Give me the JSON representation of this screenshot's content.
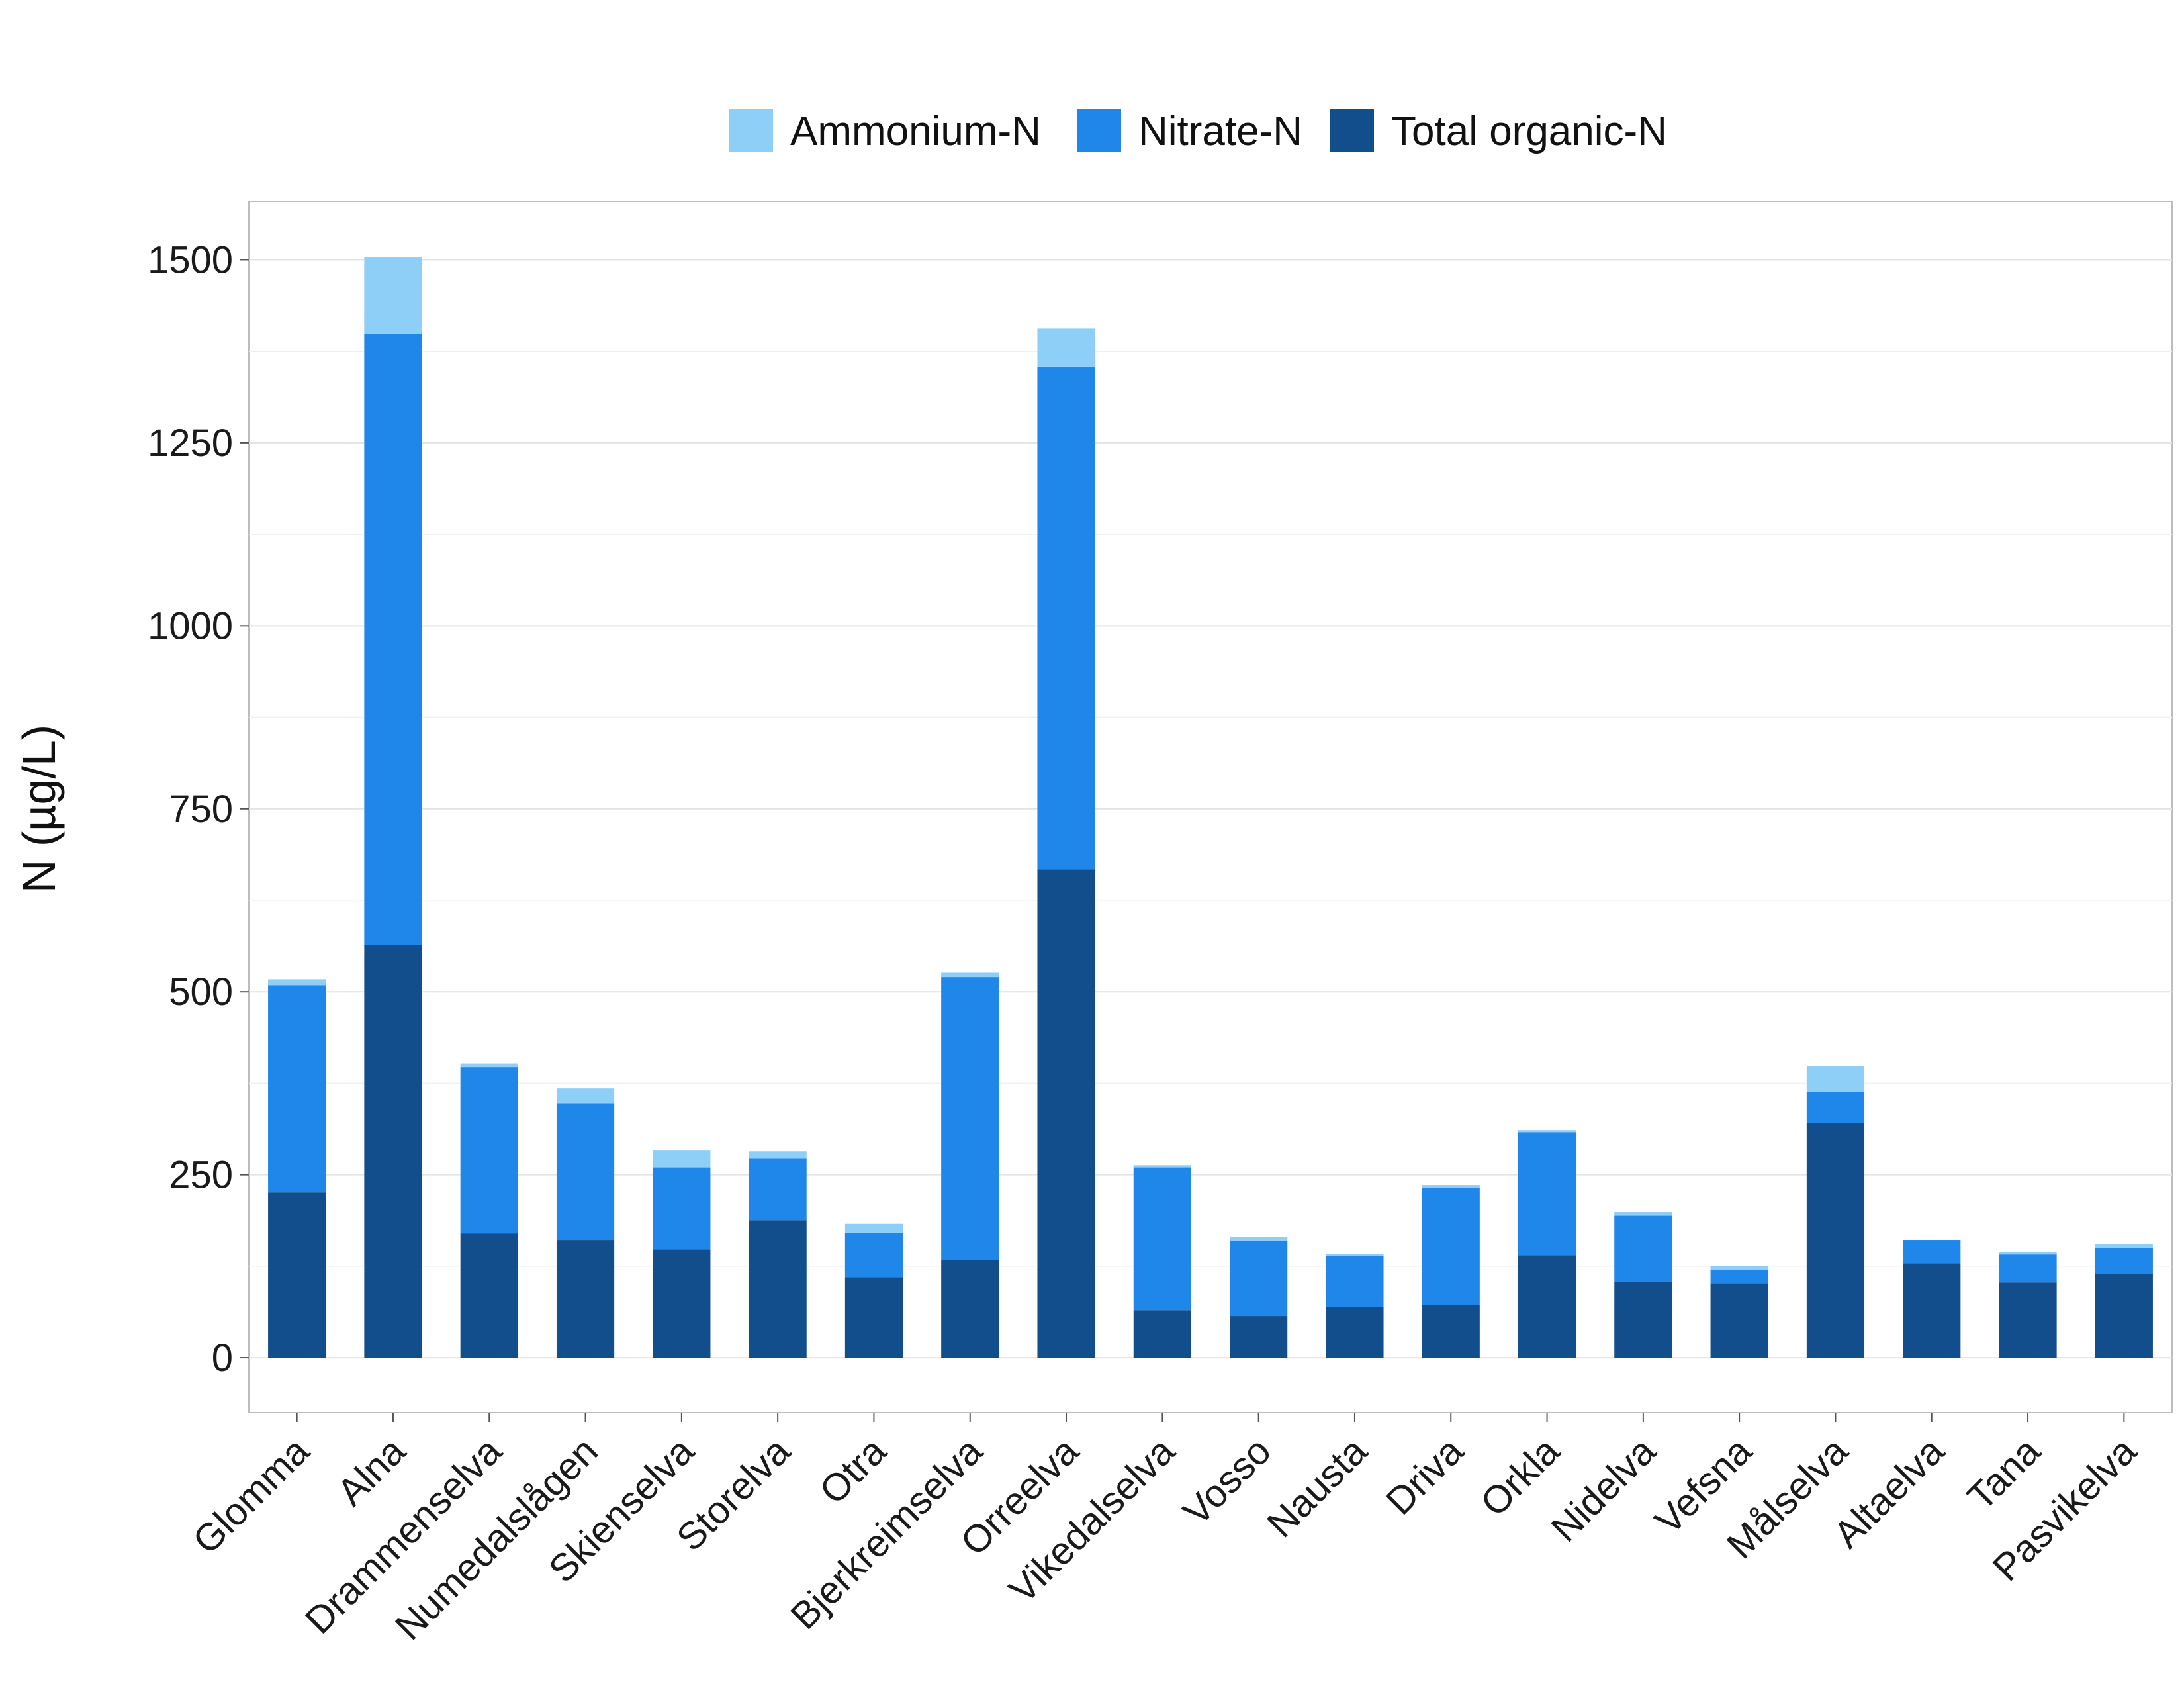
{
  "chart_data": {
    "type": "bar",
    "stacked": true,
    "title": "",
    "xlabel": "",
    "ylabel": "N (µg/L)",
    "ylim": [
      -75,
      1580
    ],
    "yticks": [
      0,
      250,
      500,
      750,
      1000,
      1250,
      1500
    ],
    "grid": true,
    "legend_position": "top",
    "categories": [
      "Glomma",
      "Alna",
      "Drammenselva",
      "Numedalslågen",
      "Skienselva",
      "Storelva",
      "Otra",
      "Bjerkreimselva",
      "Orreelva",
      "Vikedalselva",
      "Vosso",
      "Nausta",
      "Driva",
      "Orkla",
      "Nidelva",
      "Vefsna",
      "Målselva",
      "Altaelva",
      "Tana",
      "Pasvikelva"
    ],
    "series": [
      {
        "name": "Total organic-N",
        "color": "#124e8c",
        "values": [
          226,
          564,
          170,
          161,
          148,
          188,
          110,
          133,
          667,
          65,
          57,
          69,
          72,
          140,
          104,
          102,
          321,
          129,
          103,
          114
        ]
      },
      {
        "name": "Nitrate-N",
        "color": "#1f86ea",
        "values": [
          283,
          835,
          227,
          186,
          112,
          84,
          61,
          387,
          687,
          195,
          103,
          70,
          160,
          168,
          90,
          18,
          42,
          32,
          38,
          36
        ]
      },
      {
        "name": "Ammonium-N",
        "color": "#8ecff8",
        "values": [
          8,
          105,
          5,
          21,
          23,
          10,
          12,
          6,
          52,
          3,
          5,
          3,
          4,
          3,
          5,
          5,
          35,
          0,
          3,
          5
        ]
      }
    ],
    "legend_order": [
      "Ammonium-N",
      "Nitrate-N",
      "Total organic-N"
    ]
  }
}
